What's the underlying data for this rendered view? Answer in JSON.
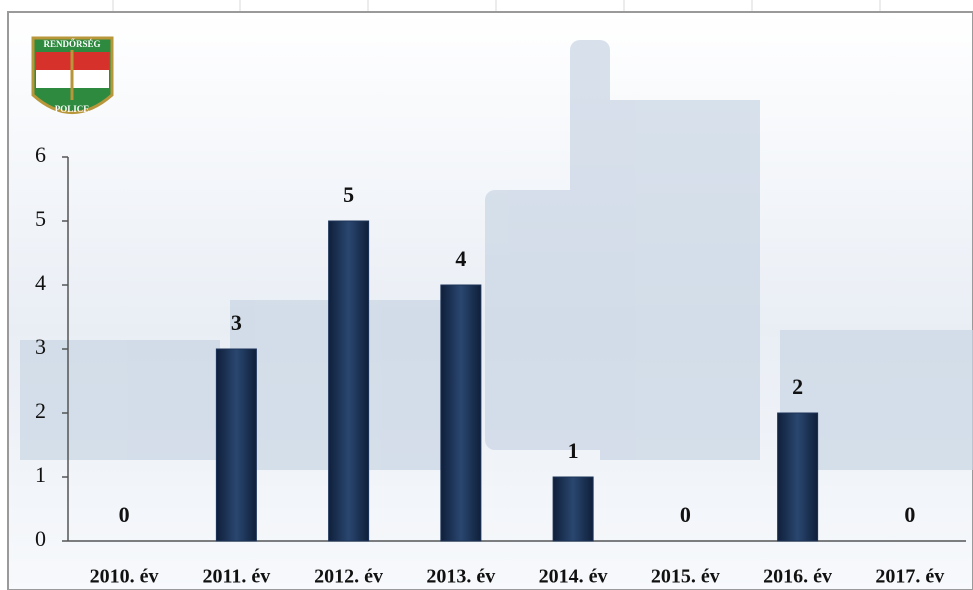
{
  "logo": {
    "top": "RENDŐRSÉG",
    "bottom": "POLICE"
  },
  "chart_data": {
    "type": "bar",
    "categories": [
      "2010. év",
      "2011. év",
      "2012. év",
      "2013. év",
      "2014. év",
      "2015. év",
      "2016. év",
      "2017. év"
    ],
    "values": [
      0,
      3,
      5,
      4,
      1,
      0,
      2,
      0
    ],
    "color": "#1c3358",
    "ylim": [
      0,
      6
    ],
    "yticks": [
      0,
      1,
      2,
      3,
      4,
      5,
      6
    ],
    "grid": false
  }
}
